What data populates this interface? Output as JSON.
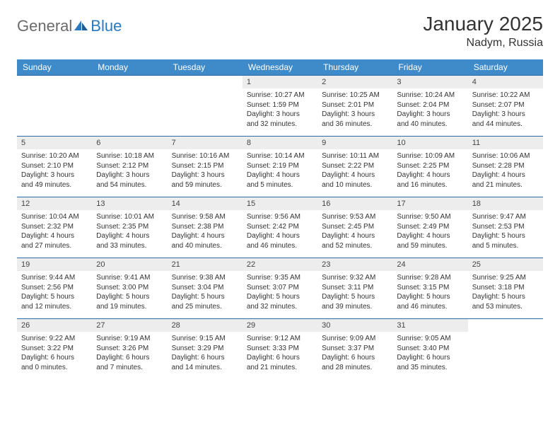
{
  "logo": {
    "gray": "General",
    "blue": "Blue"
  },
  "title": "January 2025",
  "location": "Nadym, Russia",
  "colors": {
    "header_bg": "#3f8bca",
    "header_text": "#ffffff",
    "row_border": "#2a6aa5",
    "daynum_bg": "#ededed",
    "daynum_text": "#444444",
    "body_text": "#333333",
    "logo_gray": "#6b6b6b",
    "logo_blue": "#2a7ac0",
    "page_bg": "#ffffff"
  },
  "fonts": {
    "month_title_pt": 28,
    "location_pt": 16,
    "weekday_pt": 12,
    "daynum_pt": 11,
    "info_pt": 10,
    "logo_pt": 22
  },
  "weekdays": [
    "Sunday",
    "Monday",
    "Tuesday",
    "Wednesday",
    "Thursday",
    "Friday",
    "Saturday"
  ],
  "grid": [
    [
      null,
      null,
      null,
      {
        "n": "1",
        "sr": "10:27 AM",
        "ss": "1:59 PM",
        "dl": "3 hours and 32 minutes."
      },
      {
        "n": "2",
        "sr": "10:25 AM",
        "ss": "2:01 PM",
        "dl": "3 hours and 36 minutes."
      },
      {
        "n": "3",
        "sr": "10:24 AM",
        "ss": "2:04 PM",
        "dl": "3 hours and 40 minutes."
      },
      {
        "n": "4",
        "sr": "10:22 AM",
        "ss": "2:07 PM",
        "dl": "3 hours and 44 minutes."
      }
    ],
    [
      {
        "n": "5",
        "sr": "10:20 AM",
        "ss": "2:10 PM",
        "dl": "3 hours and 49 minutes."
      },
      {
        "n": "6",
        "sr": "10:18 AM",
        "ss": "2:12 PM",
        "dl": "3 hours and 54 minutes."
      },
      {
        "n": "7",
        "sr": "10:16 AM",
        "ss": "2:15 PM",
        "dl": "3 hours and 59 minutes."
      },
      {
        "n": "8",
        "sr": "10:14 AM",
        "ss": "2:19 PM",
        "dl": "4 hours and 5 minutes."
      },
      {
        "n": "9",
        "sr": "10:11 AM",
        "ss": "2:22 PM",
        "dl": "4 hours and 10 minutes."
      },
      {
        "n": "10",
        "sr": "10:09 AM",
        "ss": "2:25 PM",
        "dl": "4 hours and 16 minutes."
      },
      {
        "n": "11",
        "sr": "10:06 AM",
        "ss": "2:28 PM",
        "dl": "4 hours and 21 minutes."
      }
    ],
    [
      {
        "n": "12",
        "sr": "10:04 AM",
        "ss": "2:32 PM",
        "dl": "4 hours and 27 minutes."
      },
      {
        "n": "13",
        "sr": "10:01 AM",
        "ss": "2:35 PM",
        "dl": "4 hours and 33 minutes."
      },
      {
        "n": "14",
        "sr": "9:58 AM",
        "ss": "2:38 PM",
        "dl": "4 hours and 40 minutes."
      },
      {
        "n": "15",
        "sr": "9:56 AM",
        "ss": "2:42 PM",
        "dl": "4 hours and 46 minutes."
      },
      {
        "n": "16",
        "sr": "9:53 AM",
        "ss": "2:45 PM",
        "dl": "4 hours and 52 minutes."
      },
      {
        "n": "17",
        "sr": "9:50 AM",
        "ss": "2:49 PM",
        "dl": "4 hours and 59 minutes."
      },
      {
        "n": "18",
        "sr": "9:47 AM",
        "ss": "2:53 PM",
        "dl": "5 hours and 5 minutes."
      }
    ],
    [
      {
        "n": "19",
        "sr": "9:44 AM",
        "ss": "2:56 PM",
        "dl": "5 hours and 12 minutes."
      },
      {
        "n": "20",
        "sr": "9:41 AM",
        "ss": "3:00 PM",
        "dl": "5 hours and 19 minutes."
      },
      {
        "n": "21",
        "sr": "9:38 AM",
        "ss": "3:04 PM",
        "dl": "5 hours and 25 minutes."
      },
      {
        "n": "22",
        "sr": "9:35 AM",
        "ss": "3:07 PM",
        "dl": "5 hours and 32 minutes."
      },
      {
        "n": "23",
        "sr": "9:32 AM",
        "ss": "3:11 PM",
        "dl": "5 hours and 39 minutes."
      },
      {
        "n": "24",
        "sr": "9:28 AM",
        "ss": "3:15 PM",
        "dl": "5 hours and 46 minutes."
      },
      {
        "n": "25",
        "sr": "9:25 AM",
        "ss": "3:18 PM",
        "dl": "5 hours and 53 minutes."
      }
    ],
    [
      {
        "n": "26",
        "sr": "9:22 AM",
        "ss": "3:22 PM",
        "dl": "6 hours and 0 minutes."
      },
      {
        "n": "27",
        "sr": "9:19 AM",
        "ss": "3:26 PM",
        "dl": "6 hours and 7 minutes."
      },
      {
        "n": "28",
        "sr": "9:15 AM",
        "ss": "3:29 PM",
        "dl": "6 hours and 14 minutes."
      },
      {
        "n": "29",
        "sr": "9:12 AM",
        "ss": "3:33 PM",
        "dl": "6 hours and 21 minutes."
      },
      {
        "n": "30",
        "sr": "9:09 AM",
        "ss": "3:37 PM",
        "dl": "6 hours and 28 minutes."
      },
      {
        "n": "31",
        "sr": "9:05 AM",
        "ss": "3:40 PM",
        "dl": "6 hours and 35 minutes."
      },
      null
    ]
  ],
  "labels": {
    "sunrise": "Sunrise:",
    "sunset": "Sunset:",
    "daylight": "Daylight:"
  }
}
